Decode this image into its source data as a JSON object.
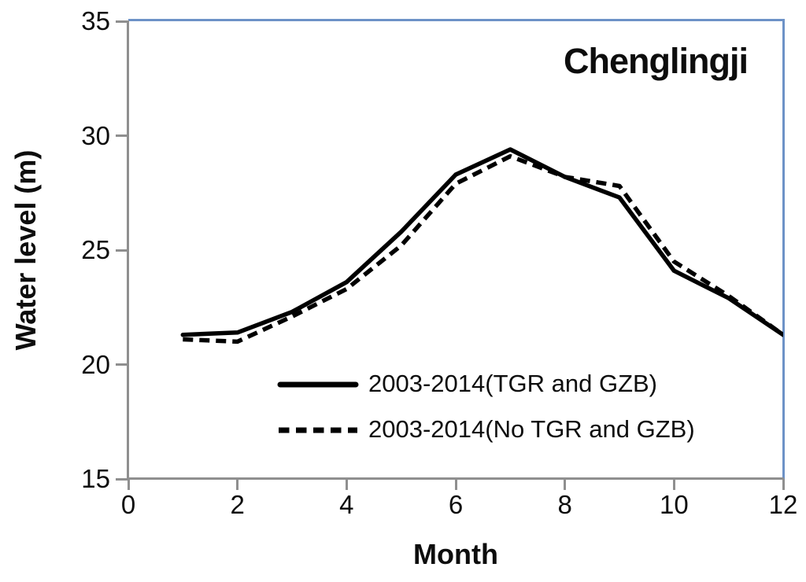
{
  "title": "Chenglingji",
  "axes": {
    "y_label": "Water level (m)",
    "x_label": "Month"
  },
  "colors": {
    "axis_gray": "#8f8f8f",
    "plot_border_blue": "#6d92c7",
    "series_black": "#000000"
  },
  "chart_data": {
    "type": "line",
    "title": "Chenglingji",
    "xlabel": "Month",
    "ylabel": "Water level (m)",
    "x": [
      1,
      2,
      3,
      4,
      5,
      6,
      7,
      8,
      9,
      10,
      11,
      12
    ],
    "series": [
      {
        "name": "2003-2014(TGR and GZB)",
        "style": "solid",
        "values": [
          21.3,
          21.4,
          22.3,
          23.6,
          25.8,
          28.3,
          29.4,
          28.2,
          27.3,
          24.1,
          22.9,
          21.3
        ]
      },
      {
        "name": "2003-2014(No TGR and GZB)",
        "style": "dashed",
        "values": [
          21.1,
          21.0,
          22.1,
          23.3,
          25.2,
          27.9,
          29.1,
          28.2,
          27.8,
          24.5,
          23.0,
          21.3
        ]
      }
    ],
    "xlim": [
      0,
      12
    ],
    "ylim": [
      15,
      35
    ],
    "x_ticks": [
      0,
      2,
      4,
      6,
      8,
      10,
      12
    ],
    "y_ticks": [
      35,
      30,
      25,
      20,
      15
    ],
    "grid": false,
    "legend_position": "inside-lower-center"
  }
}
